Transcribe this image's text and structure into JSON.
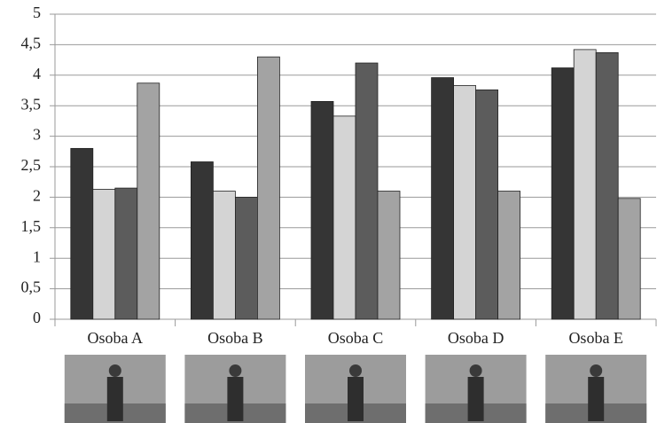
{
  "chart_data": {
    "type": "bar",
    "categories": [
      "Osoba A",
      "Osoba B",
      "Osoba C",
      "Osoba D",
      "Osoba E"
    ],
    "series": [
      {
        "color": "#353535",
        "values": [
          2.8,
          2.58,
          3.57,
          3.96,
          4.12
        ]
      },
      {
        "color": "#d4d4d4",
        "values": [
          2.13,
          2.1,
          3.33,
          3.83,
          4.42
        ]
      },
      {
        "color": "#5c5c5c",
        "values": [
          2.15,
          2.0,
          4.2,
          3.76,
          4.37
        ]
      },
      {
        "color": "#a3a3a3",
        "values": [
          3.87,
          4.3,
          2.1,
          2.1,
          1.98
        ]
      }
    ],
    "ylim": [
      0,
      5
    ],
    "yticks": [
      0,
      {
        "value": 0.5,
        "label": "0,5"
      },
      1,
      {
        "value": 1.5,
        "label": "1,5"
      },
      2,
      {
        "value": 2.5,
        "label": "2,5"
      },
      3,
      {
        "value": 3.5,
        "label": "3,5"
      },
      4,
      {
        "value": 4.5,
        "label": "4,5"
      },
      5
    ],
    "grid": true
  }
}
